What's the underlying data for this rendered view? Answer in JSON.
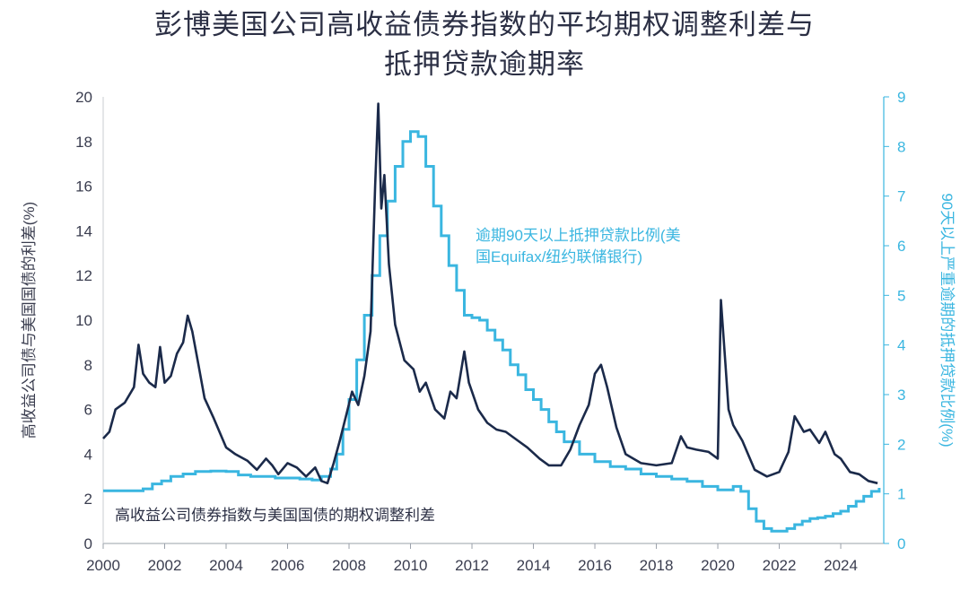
{
  "chart_data": {
    "type": "line",
    "title_line1": "彭博美国公司高收益债券指数的平均期权调整利差与",
    "title_line2": "抵押贷款逾期率",
    "ylabel_left": "高收益公司债与美国国债的利差(%)",
    "ylabel_right": "90天以上严重逾期的抵押贷款比例(%)",
    "x_ticks": [
      "2000",
      "2002",
      "2004",
      "2006",
      "2008",
      "2010",
      "2012",
      "2014",
      "2016",
      "2018",
      "2020",
      "2022",
      "2024"
    ],
    "y_left_ticks": [
      "0",
      "2",
      "4",
      "6",
      "8",
      "10",
      "12",
      "14",
      "16",
      "18",
      "20"
    ],
    "y_right_ticks": [
      "0",
      "1",
      "2",
      "3",
      "4",
      "5",
      "6",
      "7",
      "8",
      "9"
    ],
    "xlim": [
      2000,
      2025.4
    ],
    "ylim_left": [
      0,
      20
    ],
    "ylim_right": [
      0,
      9
    ],
    "annotations": {
      "blue_label_line1": "逾期90天以上抵押贷款比例(美",
      "blue_label_line2": "国Equifax/纽约联储银行)",
      "dark_label": "高收益公司债券指数与美国国债的期权调整利差"
    },
    "colors": {
      "dark": "#1b2a4a",
      "light": "#3ab6e0",
      "axis": "#3a3d4f"
    },
    "series": [
      {
        "name": "高收益公司债券指数与美国国债的期权调整利差",
        "axis": "left",
        "x": [
          2000.0,
          2000.2,
          2000.4,
          2000.7,
          2001.0,
          2001.15,
          2001.3,
          2001.5,
          2001.7,
          2001.85,
          2002.0,
          2002.2,
          2002.4,
          2002.6,
          2002.75,
          2002.9,
          2003.1,
          2003.3,
          2003.6,
          2004.0,
          2004.3,
          2004.7,
          2005.0,
          2005.3,
          2005.5,
          2005.7,
          2006.0,
          2006.3,
          2006.6,
          2006.9,
          2007.1,
          2007.3,
          2007.5,
          2007.7,
          2007.9,
          2008.1,
          2008.3,
          2008.5,
          2008.7,
          2008.85,
          2008.95,
          2009.05,
          2009.15,
          2009.3,
          2009.5,
          2009.8,
          2010.1,
          2010.3,
          2010.5,
          2010.8,
          2011.1,
          2011.3,
          2011.5,
          2011.75,
          2011.9,
          2012.2,
          2012.5,
          2012.8,
          2013.1,
          2013.5,
          2013.8,
          2014.2,
          2014.5,
          2014.9,
          2015.2,
          2015.5,
          2015.8,
          2016.0,
          2016.2,
          2016.4,
          2016.7,
          2017.0,
          2017.5,
          2018.0,
          2018.5,
          2018.8,
          2019.0,
          2019.3,
          2019.7,
          2020.0,
          2020.1,
          2020.25,
          2020.35,
          2020.5,
          2020.8,
          2021.2,
          2021.6,
          2022.0,
          2022.3,
          2022.5,
          2022.8,
          2023.0,
          2023.3,
          2023.5,
          2023.8,
          2024.0,
          2024.3,
          2024.6,
          2024.9,
          2025.2
        ],
        "y": [
          4.7,
          5.0,
          6.0,
          6.3,
          7.0,
          8.9,
          7.6,
          7.2,
          7.0,
          8.8,
          7.2,
          7.5,
          8.5,
          9.0,
          10.2,
          9.5,
          8.0,
          6.5,
          5.6,
          4.3,
          4.0,
          3.7,
          3.3,
          3.8,
          3.5,
          3.1,
          3.6,
          3.4,
          3.0,
          3.4,
          2.8,
          2.7,
          3.6,
          4.6,
          5.7,
          6.8,
          6.2,
          7.5,
          9.5,
          16.0,
          19.7,
          15.0,
          16.5,
          12.5,
          9.8,
          8.2,
          7.8,
          6.8,
          7.2,
          6.0,
          5.6,
          6.8,
          6.5,
          8.6,
          7.2,
          6.0,
          5.4,
          5.1,
          5.0,
          4.6,
          4.3,
          3.8,
          3.5,
          3.5,
          4.2,
          5.3,
          6.2,
          7.6,
          8.0,
          7.0,
          5.2,
          4.0,
          3.6,
          3.5,
          3.6,
          4.8,
          4.3,
          4.2,
          4.1,
          3.8,
          10.9,
          8.0,
          6.0,
          5.3,
          4.6,
          3.3,
          3.0,
          3.2,
          4.1,
          5.7,
          5.0,
          5.1,
          4.5,
          5.0,
          4.0,
          3.8,
          3.2,
          3.1,
          2.8,
          2.7
        ]
      },
      {
        "name": "逾期90天以上抵押贷款比例(美国Equifax/纽约联储银行)",
        "axis": "right",
        "x": [
          2000.0,
          2000.7,
          2001.0,
          2001.3,
          2001.6,
          2001.9,
          2002.2,
          2002.6,
          2003.0,
          2003.5,
          2004.0,
          2004.4,
          2004.8,
          2005.2,
          2005.6,
          2006.0,
          2006.4,
          2006.8,
          2007.1,
          2007.4,
          2007.6,
          2007.8,
          2008.0,
          2008.25,
          2008.5,
          2008.75,
          2009.0,
          2009.25,
          2009.5,
          2009.75,
          2010.0,
          2010.25,
          2010.5,
          2010.75,
          2011.0,
          2011.25,
          2011.5,
          2011.75,
          2012.0,
          2012.25,
          2012.5,
          2012.75,
          2013.0,
          2013.25,
          2013.5,
          2013.75,
          2014.0,
          2014.25,
          2014.5,
          2014.75,
          2015.0,
          2015.5,
          2016.0,
          2016.5,
          2017.0,
          2017.5,
          2018.0,
          2018.5,
          2019.0,
          2019.5,
          2020.0,
          2020.25,
          2020.5,
          2020.75,
          2021.0,
          2021.25,
          2021.5,
          2021.75,
          2022.0,
          2022.25,
          2022.5,
          2022.75,
          2023.0,
          2023.25,
          2023.5,
          2023.75,
          2024.0,
          2024.25,
          2024.5,
          2024.75,
          2025.0,
          2025.25
        ],
        "y": [
          1.06,
          1.06,
          1.06,
          1.1,
          1.2,
          1.26,
          1.35,
          1.4,
          1.45,
          1.46,
          1.45,
          1.38,
          1.35,
          1.35,
          1.32,
          1.32,
          1.3,
          1.28,
          1.35,
          1.5,
          1.8,
          2.3,
          2.9,
          3.7,
          4.6,
          5.4,
          6.2,
          6.9,
          7.6,
          8.1,
          8.3,
          8.2,
          7.6,
          6.8,
          6.2,
          5.6,
          5.1,
          4.6,
          4.55,
          4.5,
          4.3,
          4.1,
          3.9,
          3.6,
          3.4,
          3.1,
          2.9,
          2.7,
          2.45,
          2.25,
          2.05,
          1.8,
          1.65,
          1.55,
          1.5,
          1.4,
          1.35,
          1.3,
          1.25,
          1.15,
          1.08,
          1.08,
          1.15,
          1.05,
          0.7,
          0.45,
          0.3,
          0.25,
          0.25,
          0.3,
          0.38,
          0.45,
          0.5,
          0.52,
          0.55,
          0.6,
          0.65,
          0.75,
          0.85,
          0.95,
          1.05,
          1.12
        ]
      }
    ]
  }
}
